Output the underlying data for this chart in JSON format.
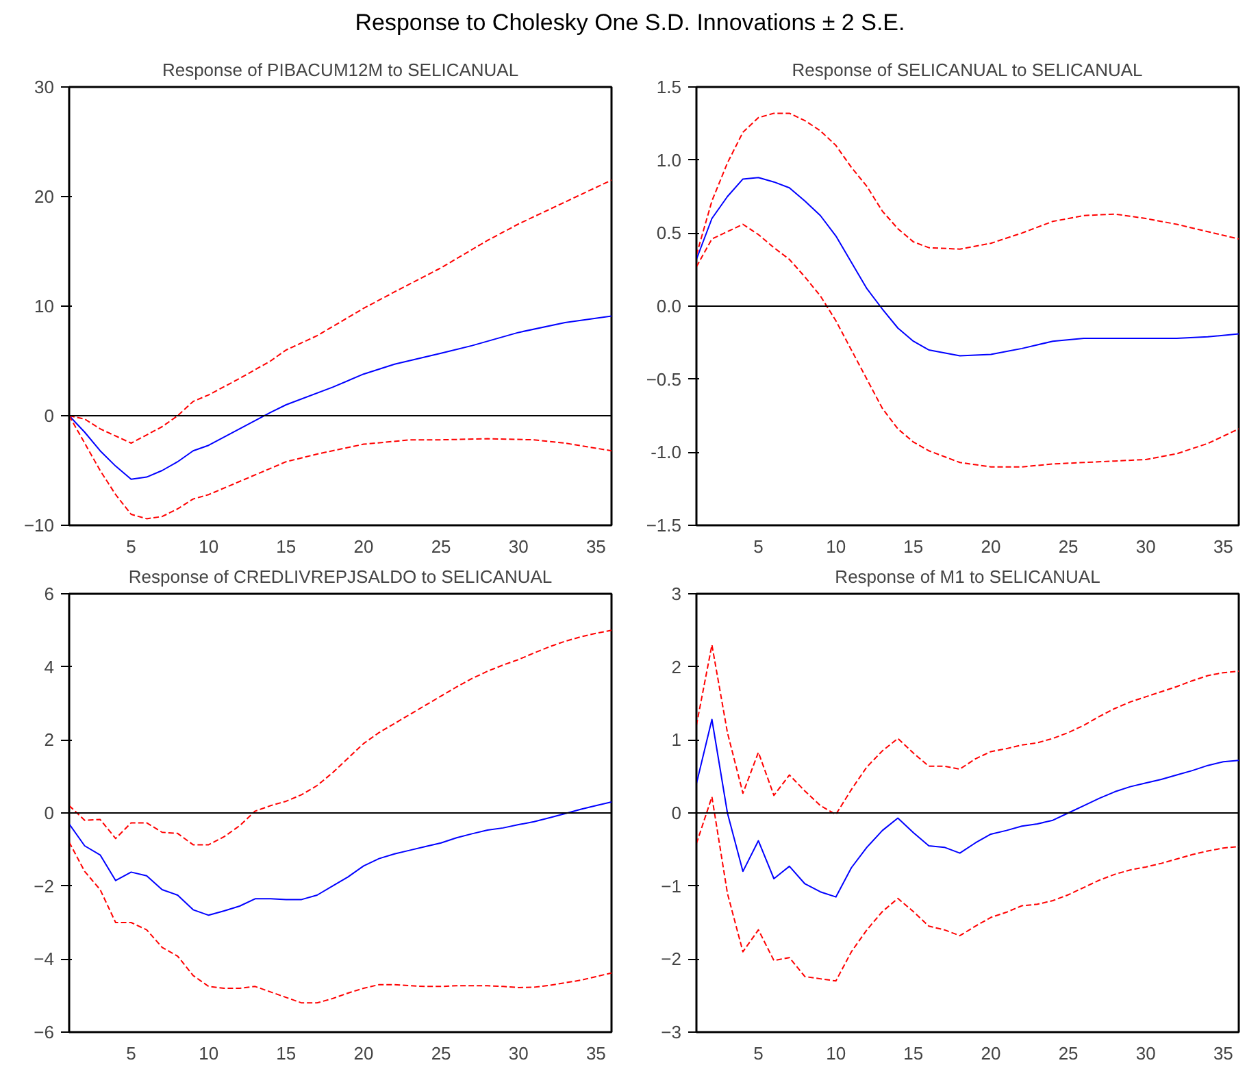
{
  "chart_data": [
    {
      "type": "line",
      "title": "Response of PIBACUM12M to SELICANUAL",
      "annotations": [
        "Response to Cholesky One S.D. Innovations ± 2 S.E."
      ],
      "xlim": [
        1,
        36
      ],
      "xticks": [
        5,
        10,
        15,
        20,
        25,
        30,
        35
      ],
      "ylim": [
        -10,
        30
      ],
      "yticks": [
        -10,
        0,
        10,
        20,
        30
      ],
      "grid": false,
      "ref_lines": [
        {
          "axis": "y",
          "value": 0,
          "color": "#000000"
        }
      ],
      "series": [
        {
          "color": "#0000ff",
          "line_style": "solid",
          "x": [
            1,
            2,
            3,
            4,
            5,
            6,
            7,
            8,
            9,
            10,
            12,
            14,
            15,
            18,
            20,
            22,
            25,
            27,
            30,
            33,
            36
          ],
          "values": [
            0,
            -1.5,
            -3.2,
            -4.6,
            -5.8,
            -5.6,
            -5.0,
            -4.2,
            -3.2,
            -2.7,
            -1.2,
            0.3,
            1.0,
            2.6,
            3.8,
            4.7,
            5.7,
            6.4,
            7.6,
            8.5,
            9.1
          ]
        },
        {
          "color": "#ff0000",
          "line_style": "dashed",
          "x": [
            1,
            2,
            3,
            5,
            7,
            8,
            9,
            10,
            12,
            14,
            15,
            17,
            20,
            22,
            25,
            28,
            30,
            33,
            36
          ],
          "values": [
            0,
            -0.3,
            -1.2,
            -2.5,
            -1.0,
            0,
            1.3,
            1.9,
            3.4,
            5.0,
            6.0,
            7.3,
            9.8,
            11.3,
            13.5,
            16.0,
            17.5,
            19.5,
            21.5
          ]
        },
        {
          "color": "#ff0000",
          "line_style": "dashed",
          "x": [
            1,
            2,
            3,
            4,
            5,
            6,
            7,
            8,
            9,
            10,
            12,
            14,
            15,
            17,
            20,
            23,
            25,
            28,
            31,
            33,
            36
          ],
          "values": [
            0,
            -2.5,
            -5,
            -7.2,
            -9.0,
            -9.4,
            -9.2,
            -8.5,
            -7.6,
            -7.2,
            -6.0,
            -4.8,
            -4.2,
            -3.5,
            -2.6,
            -2.2,
            -2.2,
            -2.1,
            -2.2,
            -2.5,
            -3.2
          ]
        }
      ]
    },
    {
      "type": "line",
      "title": "Response of SELICANUAL to SELICANUAL",
      "xlim": [
        1,
        36
      ],
      "xticks": [
        5,
        10,
        15,
        20,
        25,
        30,
        35
      ],
      "ylim": [
        -1.5,
        1.5
      ],
      "yticks": [
        -1.5,
        {
          "value": -1.0,
          "label": "-1.0"
        },
        -0.5,
        {
          "value": 0,
          "label": "0.0"
        },
        0.5,
        {
          "value": 1.0,
          "label": "1.0"
        },
        1.5
      ],
      "grid": false,
      "ref_lines": [
        {
          "axis": "y",
          "value": 0,
          "color": "#000000"
        }
      ],
      "series": [
        {
          "color": "#0000ff",
          "line_style": "solid",
          "x": [
            1,
            2,
            3,
            4,
            5,
            6,
            7,
            8,
            9,
            10,
            11,
            12,
            13,
            14,
            15,
            16,
            18,
            20,
            22,
            24,
            26,
            28,
            30,
            32,
            34,
            36
          ],
          "values": [
            0.32,
            0.6,
            0.75,
            0.87,
            0.88,
            0.85,
            0.81,
            0.72,
            0.62,
            0.48,
            0.3,
            0.12,
            -0.02,
            -0.15,
            -0.24,
            -0.3,
            -0.34,
            -0.33,
            -0.29,
            -0.24,
            -0.22,
            -0.22,
            -0.22,
            -0.22,
            -0.21,
            -0.19
          ]
        },
        {
          "color": "#ff0000",
          "line_style": "dashed",
          "x": [
            1,
            2,
            3,
            4,
            5,
            6,
            7,
            8,
            9,
            10,
            11,
            12,
            13,
            14,
            15,
            16,
            18,
            20,
            22,
            24,
            26,
            28,
            30,
            32,
            34,
            36
          ],
          "values": [
            0.35,
            0.72,
            0.98,
            1.19,
            1.29,
            1.32,
            1.32,
            1.27,
            1.2,
            1.1,
            0.95,
            0.82,
            0.65,
            0.53,
            0.44,
            0.4,
            0.39,
            0.43,
            0.5,
            0.58,
            0.62,
            0.63,
            0.6,
            0.56,
            0.51,
            0.46
          ]
        },
        {
          "color": "#ff0000",
          "line_style": "dashed",
          "x": [
            1,
            2,
            3,
            4,
            5,
            6,
            7,
            8,
            9,
            10,
            11,
            12,
            13,
            14,
            15,
            16,
            18,
            20,
            22,
            24,
            26,
            28,
            30,
            32,
            34,
            36
          ],
          "values": [
            0.27,
            0.46,
            0.51,
            0.56,
            0.49,
            0.4,
            0.32,
            0.2,
            0.07,
            -0.1,
            -0.3,
            -0.5,
            -0.7,
            -0.84,
            -0.93,
            -0.99,
            -1.07,
            -1.1,
            -1.1,
            -1.08,
            -1.07,
            -1.06,
            -1.05,
            -1.01,
            -0.94,
            -0.84
          ]
        }
      ]
    },
    {
      "type": "line",
      "title": "Response of CREDLIVREPJSALDO to SELICANUAL",
      "x": [
        1,
        2,
        3,
        4,
        5,
        6,
        7,
        8,
        9,
        10,
        11,
        12,
        13,
        14,
        15,
        16,
        17,
        18,
        19,
        20,
        21,
        22,
        23,
        24,
        25,
        26,
        27,
        28,
        29,
        30,
        31,
        32,
        33,
        34,
        35,
        36
      ],
      "xlim": [
        1,
        36
      ],
      "xticks": [
        5,
        10,
        15,
        20,
        25,
        30,
        35
      ],
      "ylim": [
        -6,
        6
      ],
      "yticks": [
        -6,
        -4,
        -2,
        0,
        2,
        4,
        6
      ],
      "grid": false,
      "ref_lines": [
        {
          "axis": "y",
          "value": 0,
          "color": "#000000"
        }
      ],
      "series": [
        {
          "color": "#0000ff",
          "line_style": "solid",
          "values": [
            -0.3,
            -0.9,
            -1.15,
            -1.85,
            -1.62,
            -1.72,
            -2.1,
            -2.25,
            -2.65,
            -2.8,
            -2.68,
            -2.55,
            -2.35,
            -2.35,
            -2.37,
            -2.37,
            -2.25,
            -2.0,
            -1.75,
            -1.45,
            -1.25,
            -1.12,
            -1.02,
            -0.92,
            -0.82,
            -0.68,
            -0.57,
            -0.47,
            -0.41,
            -0.32,
            -0.24,
            -0.13,
            -0.02,
            0.1,
            0.2,
            0.3
          ]
        },
        {
          "color": "#ff0000",
          "line_style": "dashed",
          "values": [
            0.2,
            -0.2,
            -0.18,
            -0.7,
            -0.27,
            -0.27,
            -0.53,
            -0.56,
            -0.87,
            -0.87,
            -0.65,
            -0.35,
            0.05,
            0.2,
            0.32,
            0.5,
            0.75,
            1.1,
            1.5,
            1.9,
            2.2,
            2.45,
            2.7,
            2.95,
            3.2,
            3.45,
            3.68,
            3.88,
            4.05,
            4.2,
            4.38,
            4.55,
            4.7,
            4.82,
            4.92,
            5.0
          ]
        },
        {
          "color": "#ff0000",
          "line_style": "dashed",
          "values": [
            -0.8,
            -1.6,
            -2.1,
            -3.0,
            -3.0,
            -3.2,
            -3.68,
            -3.92,
            -4.45,
            -4.75,
            -4.8,
            -4.8,
            -4.75,
            -4.9,
            -5.05,
            -5.2,
            -5.2,
            -5.08,
            -4.93,
            -4.8,
            -4.7,
            -4.7,
            -4.73,
            -4.75,
            -4.75,
            -4.73,
            -4.73,
            -4.73,
            -4.75,
            -4.78,
            -4.77,
            -4.72,
            -4.65,
            -4.58,
            -4.48,
            -4.38
          ]
        }
      ]
    },
    {
      "type": "line",
      "title": "Response of M1 to SELICANUAL",
      "x": [
        1,
        2,
        3,
        4,
        5,
        6,
        7,
        8,
        9,
        10,
        11,
        12,
        13,
        14,
        15,
        16,
        17,
        18,
        19,
        20,
        21,
        22,
        23,
        24,
        25,
        26,
        27,
        28,
        29,
        30,
        31,
        32,
        33,
        34,
        35,
        36
      ],
      "xlim": [
        1,
        36
      ],
      "xticks": [
        5,
        10,
        15,
        20,
        25,
        30,
        35
      ],
      "ylim": [
        -3,
        3
      ],
      "yticks": [
        -3,
        -2,
        -1,
        0,
        1,
        2,
        3
      ],
      "grid": false,
      "ref_lines": [
        {
          "axis": "y",
          "value": 0,
          "color": "#000000"
        }
      ],
      "series": [
        {
          "color": "#0000ff",
          "line_style": "solid",
          "values": [
            0.4,
            1.28,
            0.0,
            -0.8,
            -0.38,
            -0.9,
            -0.73,
            -0.97,
            -1.08,
            -1.15,
            -0.75,
            -0.47,
            -0.24,
            -0.07,
            -0.27,
            -0.45,
            -0.47,
            -0.55,
            -0.41,
            -0.29,
            -0.24,
            -0.18,
            -0.15,
            -0.1,
            0.0,
            0.1,
            0.2,
            0.29,
            0.36,
            0.41,
            0.46,
            0.52,
            0.58,
            0.65,
            0.7,
            0.72
          ]
        },
        {
          "color": "#ff0000",
          "line_style": "dashed",
          "values": [
            1.2,
            2.3,
            1.1,
            0.27,
            0.83,
            0.24,
            0.52,
            0.3,
            0.1,
            -0.02,
            0.32,
            0.63,
            0.85,
            1.02,
            0.82,
            0.64,
            0.64,
            0.6,
            0.74,
            0.84,
            0.88,
            0.93,
            0.96,
            1.02,
            1.1,
            1.2,
            1.32,
            1.43,
            1.52,
            1.59,
            1.66,
            1.73,
            1.81,
            1.88,
            1.92,
            1.94
          ]
        },
        {
          "color": "#ff0000",
          "line_style": "dashed",
          "values": [
            -0.42,
            0.22,
            -1.1,
            -1.9,
            -1.6,
            -2.02,
            -1.98,
            -2.24,
            -2.27,
            -2.3,
            -1.9,
            -1.6,
            -1.35,
            -1.17,
            -1.35,
            -1.55,
            -1.6,
            -1.68,
            -1.55,
            -1.43,
            -1.36,
            -1.27,
            -1.25,
            -1.2,
            -1.12,
            -1.02,
            -0.92,
            -0.84,
            -0.78,
            -0.74,
            -0.69,
            -0.63,
            -0.57,
            -0.52,
            -0.48,
            -0.46
          ]
        }
      ]
    }
  ]
}
